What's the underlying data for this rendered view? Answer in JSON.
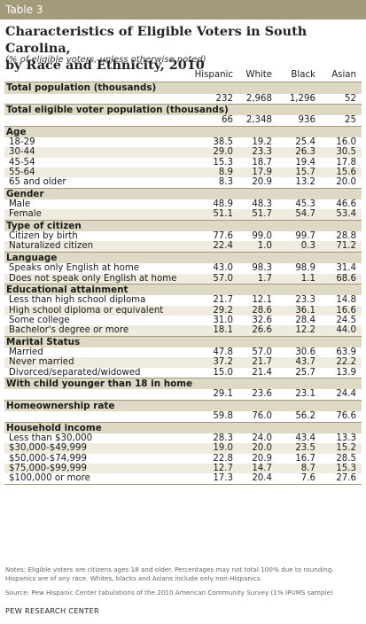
{
  "table_tag": "Table 3",
  "title_line1": "Characteristics of Eligible Voters in South Carolina,",
  "title_line2": "by Race and Ethnicity, 2010",
  "subtitle": "(% of eligible voters, unless otherwise noted)",
  "columns": [
    "Hispanic",
    "White",
    "Black",
    "Asian"
  ],
  "sections": [
    {
      "header": "Total population (thousands)",
      "rows": [
        {
          "label": "",
          "values": [
            "232",
            "2,968",
            "1,296",
            "52"
          ]
        }
      ]
    },
    {
      "header": "Total eligible voter population (thousands)",
      "rows": [
        {
          "label": "",
          "values": [
            "66",
            "2,348",
            "936",
            "25"
          ]
        }
      ]
    },
    {
      "header": "Age",
      "rows": [
        {
          "label": "18-29",
          "values": [
            "38.5",
            "19.2",
            "25.4",
            "16.0"
          ]
        },
        {
          "label": "30-44",
          "values": [
            "29.0",
            "23.3",
            "26.3",
            "30.5"
          ]
        },
        {
          "label": "45-54",
          "values": [
            "15.3",
            "18.7",
            "19.4",
            "17.8"
          ]
        },
        {
          "label": "55-64",
          "values": [
            "8.9",
            "17.9",
            "15.7",
            "15.6"
          ]
        },
        {
          "label": "65 and older",
          "values": [
            "8.3",
            "20.9",
            "13.2",
            "20.0"
          ]
        }
      ]
    },
    {
      "header": "Gender",
      "rows": [
        {
          "label": "Male",
          "values": [
            "48.9",
            "48.3",
            "45.3",
            "46.6"
          ]
        },
        {
          "label": "Female",
          "values": [
            "51.1",
            "51.7",
            "54.7",
            "53.4"
          ]
        }
      ]
    },
    {
      "header": "Type of citizen",
      "rows": [
        {
          "label": "Citizen by birth",
          "values": [
            "77.6",
            "99.0",
            "99.7",
            "28.8"
          ]
        },
        {
          "label": "Naturalized citizen",
          "values": [
            "22.4",
            "1.0",
            "0.3",
            "71.2"
          ]
        }
      ]
    },
    {
      "header": "Language",
      "rows": [
        {
          "label": "Speaks only English at home",
          "values": [
            "43.0",
            "98.3",
            "98.9",
            "31.4"
          ]
        },
        {
          "label": "Does not speak only English at home",
          "values": [
            "57.0",
            "1.7",
            "1.1",
            "68.6"
          ]
        }
      ]
    },
    {
      "header": "Educational attainment",
      "rows": [
        {
          "label": "Less than high school diploma",
          "values": [
            "21.7",
            "12.1",
            "23.3",
            "14.8"
          ]
        },
        {
          "label": "High school diploma or equivalent",
          "values": [
            "29.2",
            "28.6",
            "36.1",
            "16.6"
          ]
        },
        {
          "label": "Some college",
          "values": [
            "31.0",
            "32.6",
            "28.4",
            "24.5"
          ]
        },
        {
          "label": "Bachelor's degree or more",
          "values": [
            "18.1",
            "26.6",
            "12.2",
            "44.0"
          ]
        }
      ]
    },
    {
      "header": "Marital Status",
      "rows": [
        {
          "label": "Married",
          "values": [
            "47.8",
            "57.0",
            "30.6",
            "63.9"
          ]
        },
        {
          "label": "Never married",
          "values": [
            "37.2",
            "21.7",
            "43.7",
            "22.2"
          ]
        },
        {
          "label": "Divorced/separated/widowed",
          "values": [
            "15.0",
            "21.4",
            "25.7",
            "13.9"
          ]
        }
      ]
    },
    {
      "header": "With child younger than 18 in home",
      "rows": [
        {
          "label": "",
          "values": [
            "29.1",
            "23.6",
            "23.1",
            "24.4"
          ]
        }
      ]
    },
    {
      "header": "Homeownership rate",
      "rows": [
        {
          "label": "",
          "values": [
            "59.8",
            "76.0",
            "56.2",
            "76.6"
          ]
        }
      ]
    },
    {
      "header": "Household income",
      "rows": [
        {
          "label": "Less than $30,000",
          "values": [
            "28.3",
            "24.0",
            "43.4",
            "13.3"
          ]
        },
        {
          "label": "$30,000-$49,999",
          "values": [
            "19.0",
            "20.0",
            "23.5",
            "15.2"
          ]
        },
        {
          "label": "$50,000-$74,999",
          "values": [
            "22.8",
            "20.9",
            "16.7",
            "28.5"
          ]
        },
        {
          "label": "$75,000-$99,999",
          "values": [
            "12.7",
            "14.7",
            "8.7",
            "15.3"
          ]
        },
        {
          "label": "$100,000 or more",
          "values": [
            "17.3",
            "20.4",
            "7.6",
            "27.6"
          ]
        }
      ]
    }
  ],
  "notes": "Notes: Eligible voters are citizens ages 18 and older. Percentages may not total 100% due to rounding. Hispanics are of any race. Whites, blacks and Asians include only non-Hispanics.",
  "source": "Source: Pew Hispanic Center tabulations of the 2010 American Community Survey (1% IPUMS sample)",
  "brand": "PEW RESEARCH CENTER",
  "colors": {
    "tag_bg": "#a39a7c",
    "section_bg": "#ded9c4",
    "stripe_bg": "#efecdf"
  }
}
